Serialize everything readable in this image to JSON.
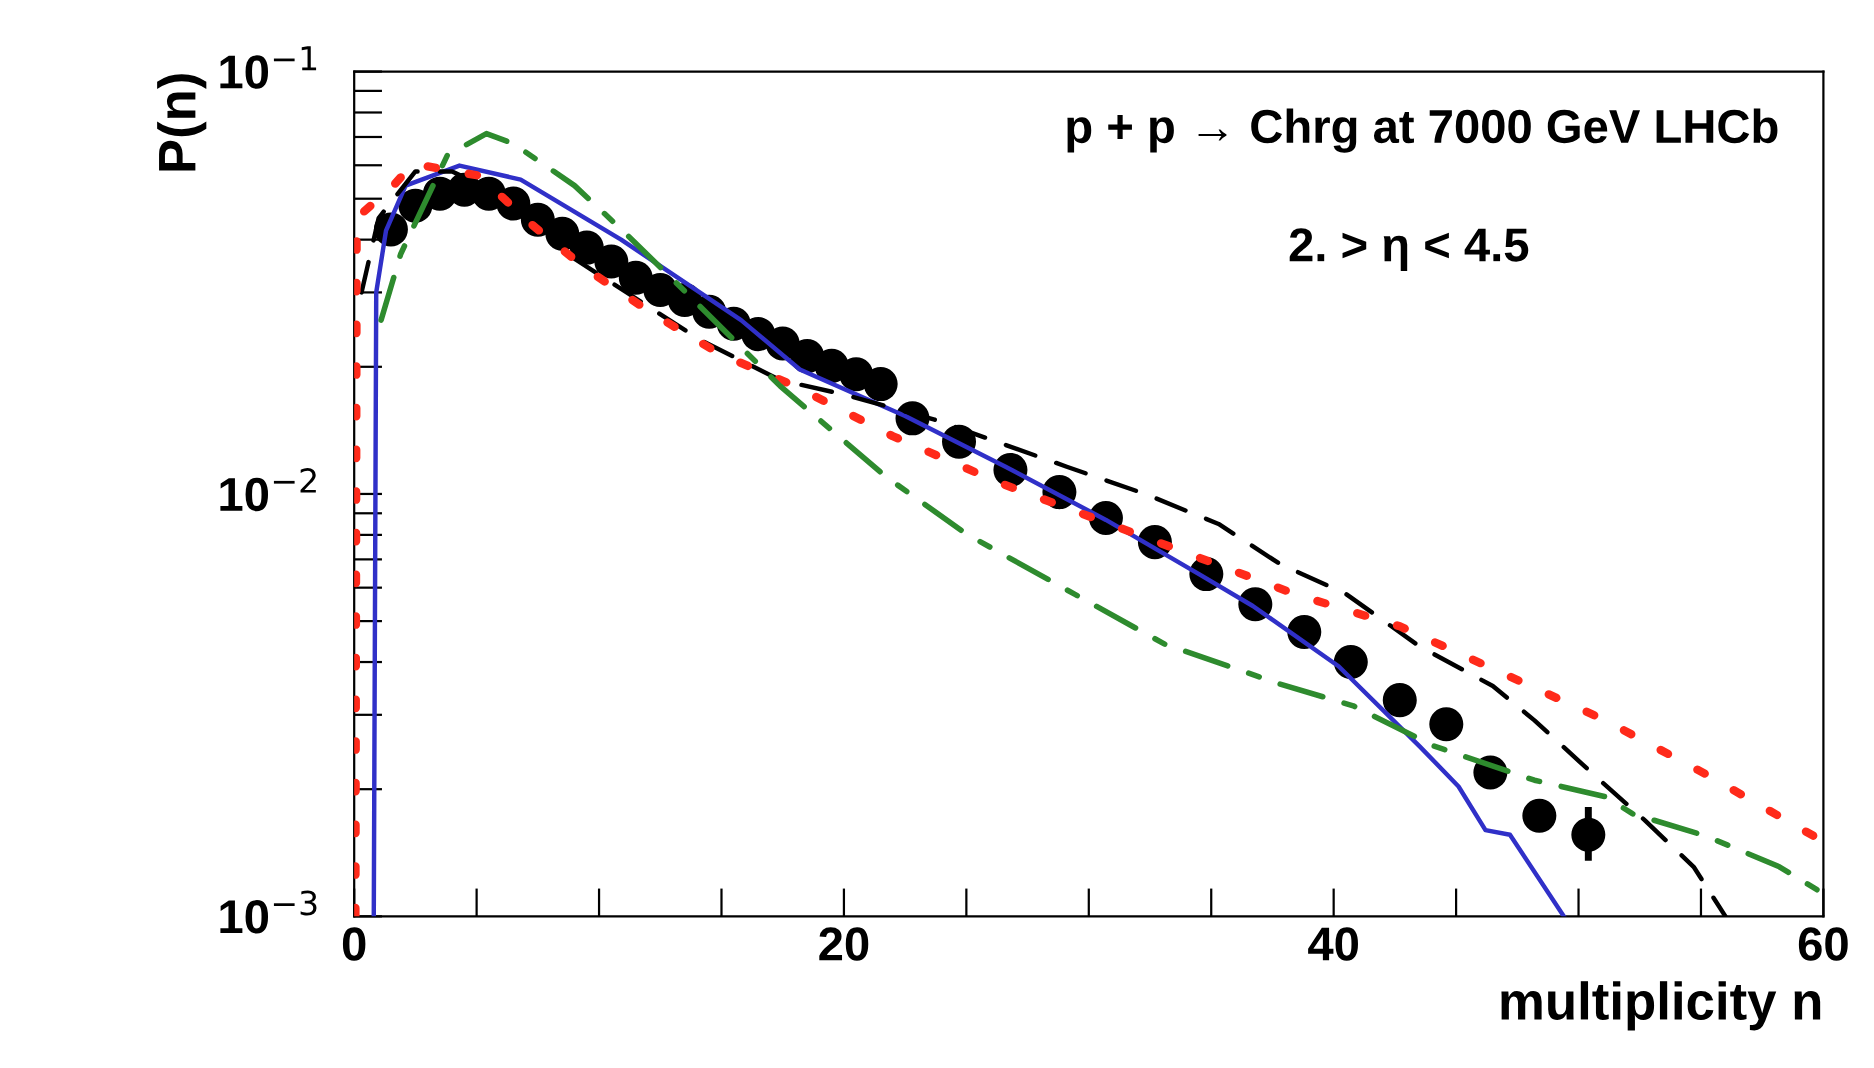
{
  "chart_data": {
    "type": "line",
    "xlabel": "multiplicity n",
    "ylabel": "P(n)",
    "log": "y",
    "grid": false,
    "xlim": [
      0,
      60
    ],
    "xticks": [
      0,
      {
        "value": 5,
        "label": null
      },
      {
        "value": 10,
        "label": null
      },
      {
        "value": 15,
        "label": null
      },
      20,
      {
        "value": 25,
        "label": null
      },
      {
        "value": 30,
        "label": null
      },
      {
        "value": 35,
        "label": null
      },
      40,
      {
        "value": 45,
        "label": null
      },
      {
        "value": 50,
        "label": null
      },
      {
        "value": 55,
        "label": null
      },
      60
    ],
    "ylim": [
      0.001,
      0.1
    ],
    "yticks": [
      {
        "value": 0.001,
        "label": "10$^{−3}$"
      },
      {
        "value": 0.002,
        "label": null
      },
      {
        "value": 0.003,
        "label": null
      },
      {
        "value": 0.004,
        "label": null
      },
      {
        "value": 0.005,
        "label": null
      },
      {
        "value": 0.006,
        "label": null
      },
      {
        "value": 0.007,
        "label": null
      },
      {
        "value": 0.008,
        "label": null
      },
      {
        "value": 0.009,
        "label": null
      },
      {
        "value": 0.01,
        "label": "10$^{−2}$"
      },
      {
        "value": 0.02,
        "label": null
      },
      {
        "value": 0.03,
        "label": null
      },
      {
        "value": 0.04,
        "label": null
      },
      {
        "value": 0.05,
        "label": null
      },
      {
        "value": 0.06,
        "label": null
      },
      {
        "value": 0.07,
        "label": null
      },
      {
        "value": 0.08,
        "label": null
      },
      {
        "value": 0.09,
        "label": null
      },
      {
        "value": 0.1,
        "label": "10$^{−1}$"
      }
    ],
    "annotations": [
      "p + p → Chrg at 7000 GeV LHCb",
      "2. > η < 4.5"
    ],
    "series": [
      {
        "type": "scatter",
        "marker": "circle",
        "color": "#000000",
        "x": [
          1.5,
          2.5,
          3.5,
          4.5,
          5.5,
          6.5,
          7.5,
          8.5,
          9.5,
          10.5,
          11.5,
          12.5,
          13.5,
          14.5,
          15.5,
          16.5,
          17.5,
          18.5,
          19.5,
          20.5,
          21.5,
          22.8,
          24.7,
          26.8,
          28.8,
          30.7,
          32.7,
          34.8,
          36.8,
          38.8,
          40.7,
          42.7,
          44.6,
          46.4,
          48.4,
          50.4
        ],
        "values": [
          0.0423,
          0.0481,
          0.0514,
          0.0525,
          0.0514,
          0.0487,
          0.0446,
          0.0413,
          0.0383,
          0.0355,
          0.0325,
          0.0304,
          0.0288,
          0.027,
          0.0253,
          0.0239,
          0.0227,
          0.0212,
          0.0201,
          0.0192,
          0.0182,
          0.0151,
          0.0133,
          0.0114,
          0.0101,
          0.00877,
          0.00769,
          0.00646,
          0.00548,
          0.00471,
          0.004,
          0.00325,
          0.00285,
          0.00219,
          0.00173,
          0.00156
        ],
        "errors": [
          null,
          null,
          null,
          null,
          null,
          null,
          null,
          null,
          null,
          null,
          null,
          null,
          null,
          null,
          null,
          null,
          null,
          null,
          null,
          null,
          null,
          null,
          null,
          null,
          null,
          null,
          null,
          null,
          null,
          null,
          null,
          null,
          null,
          null,
          null,
          [
            0.00138,
            0.00178
          ]
        ]
      },
      {
        "type": "line",
        "line_style": "solid",
        "color": "#3030c8",
        "x": [
          0.8,
          0.9,
          1.3,
          2.1,
          4.3,
          6.8,
          10.9,
          15.8,
          18.2,
          22.5,
          26.6,
          30.7,
          34.5,
          36.7,
          40.2,
          43.5,
          45.1,
          46.2,
          47.2,
          49.4
        ],
        "values": [
          0.001,
          0.03,
          0.042,
          0.0537,
          0.0599,
          0.0555,
          0.04,
          0.0258,
          0.0197,
          0.0153,
          0.0116,
          0.00868,
          0.00646,
          0.00543,
          0.00391,
          0.00253,
          0.00203,
          0.0016,
          0.00156,
          0.001
        ]
      },
      {
        "type": "line",
        "line_style": "dashed",
        "color": "#000000",
        "x": [
          0.3,
          1,
          2.5,
          4,
          7,
          8.7,
          14.1,
          17.4,
          20,
          23.7,
          29.1,
          32.3,
          35.3,
          37.8,
          40.5,
          43.5,
          46.5,
          48.2,
          50.6,
          52.7,
          54.7,
          56
        ],
        "values": [
          0.03,
          0.045,
          0.058,
          0.058,
          0.048,
          0.037,
          0.0232,
          0.0186,
          0.0172,
          0.015,
          0.0116,
          0.01,
          0.00849,
          0.00683,
          0.0058,
          0.00436,
          0.00351,
          0.00291,
          0.00217,
          0.00169,
          0.00131,
          0.001
        ]
      },
      {
        "type": "line",
        "line_style": "dotted",
        "color": "#ff2a1a",
        "x": [
          0.05,
          0.1,
          1.6,
          2.4,
          5.1,
          7.3,
          9.5,
          12.2,
          14.9,
          18,
          22,
          26.4,
          33.7,
          38.4,
          42.7,
          47,
          51.1,
          55.2,
          59.6
        ],
        "values": [
          0.001,
          0.045,
          0.0537,
          0.0605,
          0.0567,
          0.0432,
          0.034,
          0.0267,
          0.0215,
          0.018,
          0.0137,
          0.0106,
          0.00736,
          0.0058,
          0.00486,
          0.00374,
          0.00291,
          0.00217,
          0.00155
        ]
      },
      {
        "type": "line",
        "line_style": "dashdot",
        "color": "#2e8b2e",
        "x": [
          1.1,
          1.9,
          3.8,
          5.4,
          6.5,
          9,
          11.1,
          13.6,
          17.4,
          21.7,
          25,
          29.4,
          33.1,
          37.8,
          40.8,
          44.1,
          48.2,
          51.1,
          52.2,
          55.2,
          58.2,
          59.8
        ],
        "values": [
          0.0258,
          0.037,
          0.0633,
          0.0713,
          0.0675,
          0.0537,
          0.0413,
          0.0298,
          0.018,
          0.011,
          0.00804,
          0.0058,
          0.00441,
          0.00355,
          0.00315,
          0.00253,
          0.0021,
          0.00192,
          0.00175,
          0.00155,
          0.00131,
          0.00115
        ]
      }
    ]
  }
}
